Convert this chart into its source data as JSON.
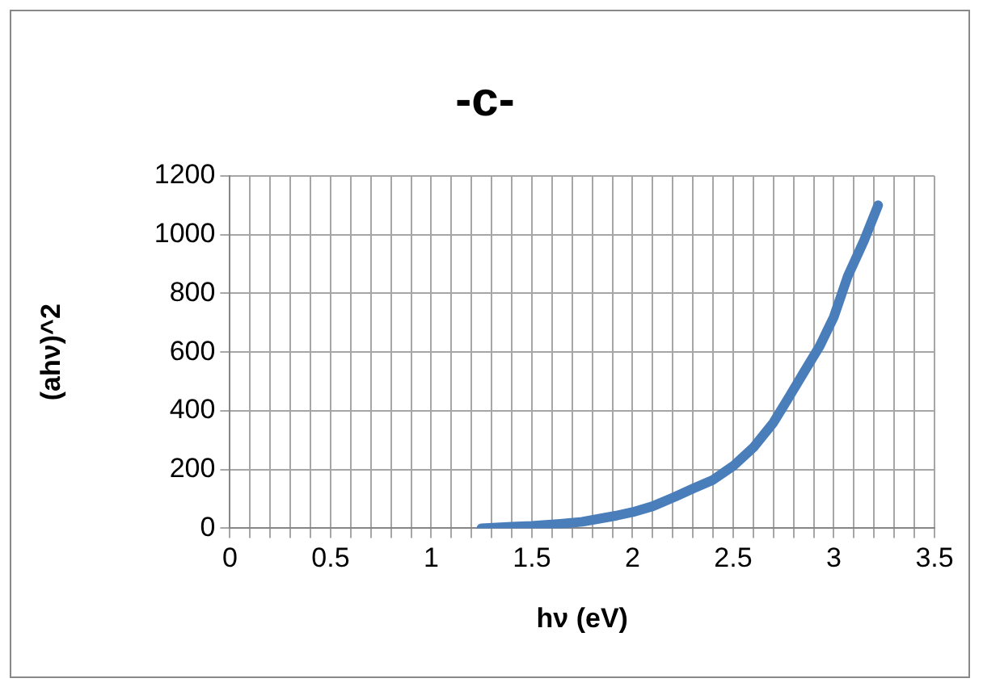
{
  "chart_data": {
    "type": "line",
    "title": "-c-",
    "xlabel": "hν (eV)",
    "ylabel": "(ahν)^2",
    "x": [
      1.25,
      1.4,
      1.5,
      1.64,
      1.75,
      1.92,
      2.0,
      2.1,
      2.21,
      2.3,
      2.4,
      2.5,
      2.6,
      2.7,
      2.78,
      2.85,
      2.93,
      3.0,
      3.07,
      3.15,
      3.22
    ],
    "series": [
      {
        "color": "#4a7ebb",
        "values": [
          0,
          5,
          8,
          15,
          22,
          43,
          55,
          75,
          107,
          135,
          165,
          212,
          275,
          360,
          450,
          530,
          621,
          720,
          860,
          980,
          1100
        ]
      }
    ],
    "xlim": [
      0,
      3.5
    ],
    "xticks": [
      0,
      {
        "value": 0.1,
        "label": null
      },
      {
        "value": 0.2,
        "label": null
      },
      {
        "value": 0.3,
        "label": null
      },
      {
        "value": 0.4,
        "label": null
      },
      0.5,
      {
        "value": 0.6,
        "label": null
      },
      {
        "value": 0.7,
        "label": null
      },
      {
        "value": 0.8,
        "label": null
      },
      {
        "value": 0.9,
        "label": null
      },
      1,
      {
        "value": 1.1,
        "label": null
      },
      {
        "value": 1.2,
        "label": null
      },
      {
        "value": 1.3,
        "label": null
      },
      {
        "value": 1.4,
        "label": null
      },
      1.5,
      {
        "value": 1.6,
        "label": null
      },
      {
        "value": 1.7,
        "label": null
      },
      {
        "value": 1.8,
        "label": null
      },
      {
        "value": 1.9,
        "label": null
      },
      2,
      {
        "value": 2.1,
        "label": null
      },
      {
        "value": 2.2,
        "label": null
      },
      {
        "value": 2.3,
        "label": null
      },
      {
        "value": 2.4,
        "label": null
      },
      2.5,
      {
        "value": 2.6,
        "label": null
      },
      {
        "value": 2.7,
        "label": null
      },
      {
        "value": 2.8,
        "label": null
      },
      {
        "value": 2.9,
        "label": null
      },
      3,
      {
        "value": 3.1,
        "label": null
      },
      {
        "value": 3.2,
        "label": null
      },
      {
        "value": 3.3,
        "label": null
      },
      {
        "value": 3.4,
        "label": null
      },
      3.5
    ],
    "ylim": [
      0,
      1200
    ],
    "yticks": [
      0,
      200,
      400,
      600,
      800,
      1000,
      1200
    ],
    "grid": true,
    "marker": "none",
    "line_style": "solid"
  }
}
